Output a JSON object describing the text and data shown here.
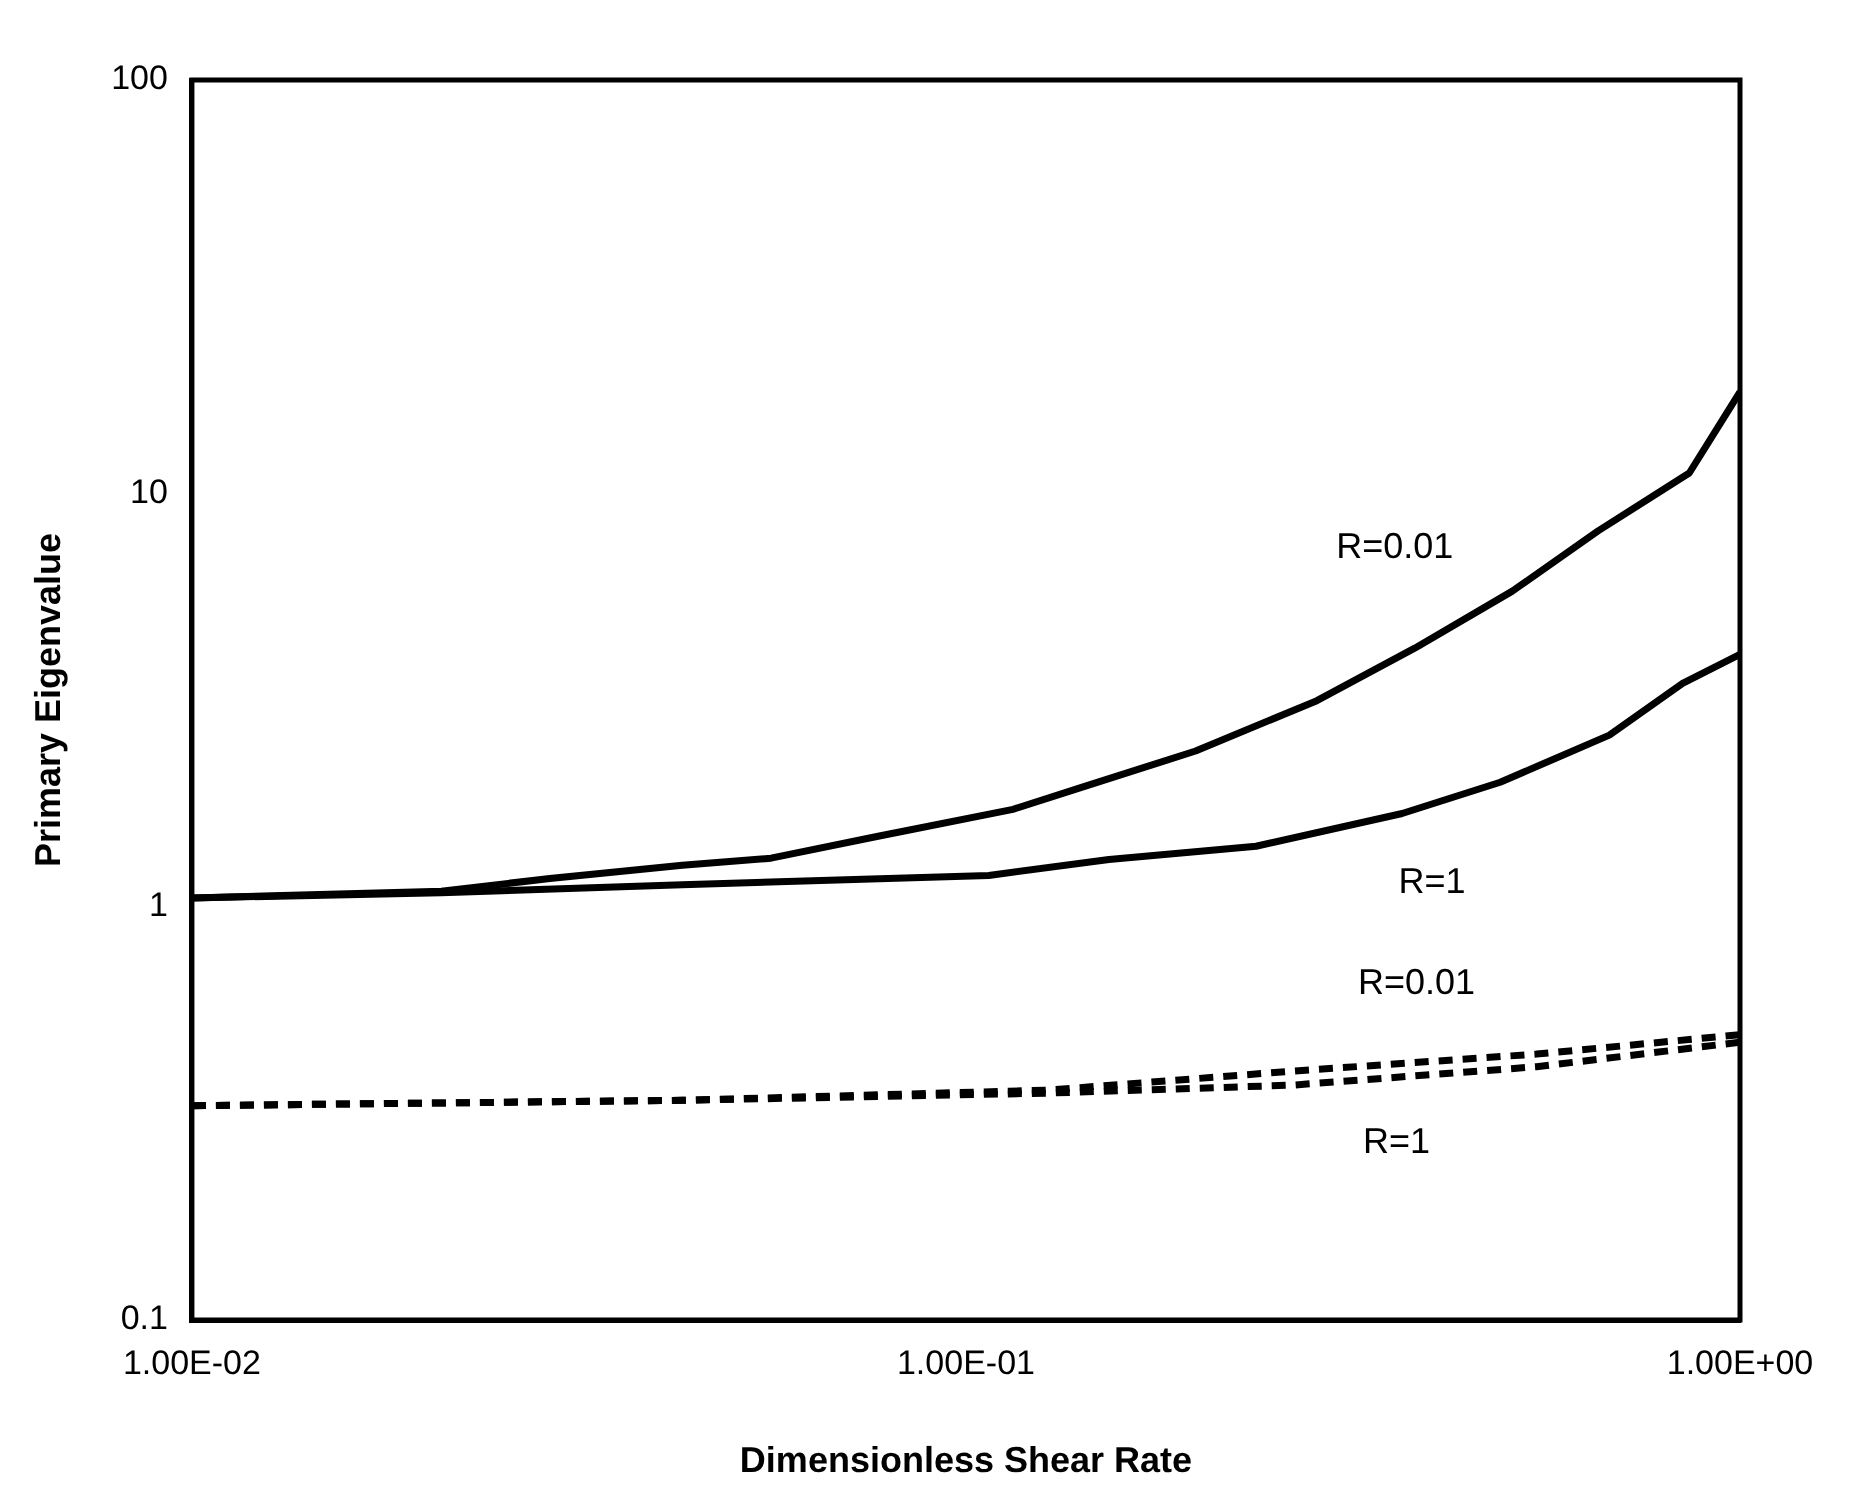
{
  "chart_data": {
    "type": "line",
    "xlabel": "Dimensionless Shear Rate",
    "ylabel": "Primary Eigenvalue",
    "log": "xy",
    "grid": false,
    "legend": false,
    "marker": "none",
    "xlim": [
      0.01,
      1
    ],
    "xticks": [
      {
        "value": 0.01,
        "label": "1.00E-02"
      },
      {
        "value": 0.1,
        "label": "1.00E-01"
      },
      {
        "value": 1,
        "label": "1.00E+00"
      }
    ],
    "ylim": [
      0.1,
      100
    ],
    "yticks": [
      0.1,
      1,
      10,
      100
    ],
    "series": [
      {
        "name": "R=0.01",
        "color": "#000000",
        "line_style": "solid",
        "x": [
          0.01,
          0.021,
          0.029,
          0.043,
          0.056,
          0.077,
          0.115,
          0.143,
          0.198,
          0.284,
          0.38,
          0.508,
          0.655,
          0.86,
          1
        ],
        "values": [
          1.05,
          1.09,
          1.17,
          1.26,
          1.31,
          1.48,
          1.72,
          1.96,
          2.38,
          3.15,
          4.22,
          5.8,
          8.1,
          11.2,
          17.6
        ]
      },
      {
        "name": "R=1",
        "color": "#000000",
        "line_style": "solid",
        "x": [
          0.01,
          0.021,
          0.043,
          0.107,
          0.153,
          0.237,
          0.366,
          0.49,
          0.678,
          0.843,
          1
        ],
        "values": [
          1.05,
          1.08,
          1.13,
          1.19,
          1.3,
          1.4,
          1.68,
          2.0,
          2.6,
          3.47,
          4.08
        ]
      },
      {
        "name": "R=0.01",
        "color": "#000000",
        "line_style": "dashed",
        "x": [
          0.01,
          0.043,
          0.128,
          0.264,
          0.546,
          1
        ],
        "values": [
          0.33,
          0.34,
          0.36,
          0.4,
          0.44,
          0.49
        ]
      },
      {
        "name": "R=1",
        "color": "#000000",
        "line_style": "dashed",
        "x": [
          0.01,
          0.043,
          0.128,
          0.264,
          0.546,
          1
        ],
        "values": [
          0.33,
          0.34,
          0.354,
          0.37,
          0.41,
          0.47
        ]
      }
    ]
  }
}
